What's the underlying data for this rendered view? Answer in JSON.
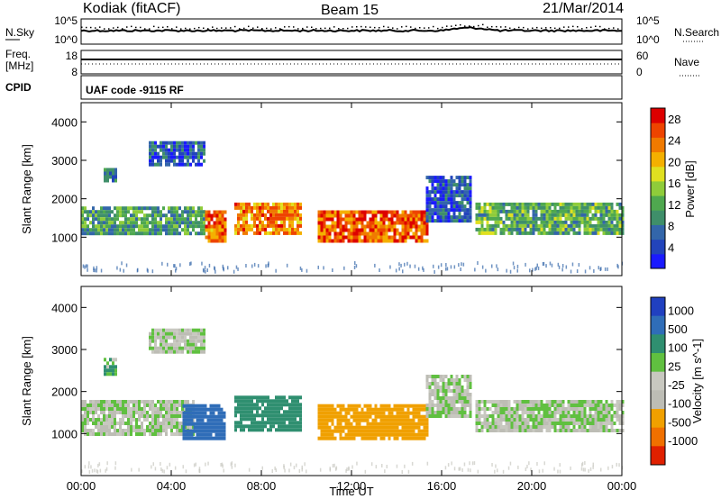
{
  "header": {
    "station": "Kodiak (fitACF)",
    "beam": "Beam 15",
    "date": "21/Mar/2014"
  },
  "noise_panel": {
    "left_label": "N.Sky",
    "right_label": "N.Search",
    "ticks": [
      "10^5",
      "10^0"
    ],
    "right_ticks": [
      "10^5",
      "10^0"
    ]
  },
  "freq_panel": {
    "left_label_1": "Freq.",
    "left_label_2": "[MHz]",
    "left_ticks": [
      "18",
      "8"
    ],
    "right_ticks": [
      "60",
      "0"
    ],
    "right_label": "Nave",
    "cpid_label": "CPID"
  },
  "cpid_panel": {
    "text": "UAF code -9115 RF"
  },
  "colors": {
    "power": [
      "#1a1aff",
      "#2244bb",
      "#3366aa",
      "#3f8f6a",
      "#4fa84f",
      "#8fcc3a",
      "#e0e020",
      "#f4b000",
      "#f07a00",
      "#ee4400",
      "#dd0000"
    ],
    "velocity": [
      "#2040c0",
      "#2f6db8",
      "#2f8f70",
      "#60c040",
      "#c8c8c0",
      "#bdbdb5",
      "#f0a000",
      "#f07000",
      "#e02000"
    ]
  },
  "chart_data": [
    {
      "type": "heatmap",
      "name": "power",
      "ylabel": "Slant Range [km]",
      "xlabel": "",
      "xlim": [
        "00:00",
        "00:00"
      ],
      "ylim": [
        0,
        4500
      ],
      "xticks": [
        "00:00",
        "04:00",
        "08:00",
        "12:00",
        "16:00",
        "20:00",
        "00:00"
      ],
      "yticks": [
        1000,
        2000,
        3000,
        4000
      ],
      "colorbar_label": "Power [dB]",
      "colorbar_ticks": [
        28,
        24,
        20,
        16,
        12,
        8,
        4
      ],
      "colorbar_range": [
        0,
        30
      ],
      "regions": [
        {
          "t0": 0.0,
          "t1": 5.5,
          "r0": 1050,
          "r1": 1800,
          "v": 11
        },
        {
          "t0": 5.5,
          "t1": 6.4,
          "r0": 900,
          "r1": 1700,
          "v": 24
        },
        {
          "t0": 6.8,
          "t1": 9.8,
          "r0": 1100,
          "r1": 1900,
          "v": 23
        },
        {
          "t0": 10.5,
          "t1": 15.3,
          "r0": 900,
          "r1": 1700,
          "v": 25
        },
        {
          "t0": 15.3,
          "t1": 17.3,
          "r0": 1400,
          "r1": 2600,
          "v": 5
        },
        {
          "t0": 17.5,
          "t1": 24.0,
          "r0": 1100,
          "r1": 1900,
          "v": 12
        },
        {
          "t0": 1.0,
          "t1": 1.6,
          "r0": 2450,
          "r1": 2800,
          "v": 8
        },
        {
          "t0": 3.0,
          "t1": 5.5,
          "r0": 2900,
          "r1": 3500,
          "v": 6
        }
      ]
    },
    {
      "type": "heatmap",
      "name": "velocity",
      "ylabel": "Slant Range [km]",
      "xlabel": "Time UT",
      "xlim": [
        "00:00",
        "00:00"
      ],
      "ylim": [
        0,
        4500
      ],
      "xticks": [
        "00:00",
        "04:00",
        "08:00",
        "12:00",
        "16:00",
        "20:00",
        "00:00"
      ],
      "yticks": [
        1000,
        2000,
        3000,
        4000
      ],
      "colorbar_label": "Velocity [m s^-1]",
      "colorbar_ticks": [
        "1000",
        "500",
        "100",
        "25",
        "-25",
        "-100",
        "-500",
        "-1000"
      ],
      "regions": [
        {
          "t0": 0.0,
          "t1": 5.0,
          "r0": 1000,
          "r1": 1800,
          "v": 0
        },
        {
          "t0": 4.5,
          "t1": 6.4,
          "r0": 900,
          "r1": 1700,
          "v": 800
        },
        {
          "t0": 6.8,
          "t1": 9.8,
          "r0": 1100,
          "r1": 1900,
          "v": 400
        },
        {
          "t0": 10.5,
          "t1": 15.3,
          "r0": 900,
          "r1": 1700,
          "v": -200
        },
        {
          "t0": 15.3,
          "t1": 17.3,
          "r0": 1400,
          "r1": 2400,
          "v": 0
        },
        {
          "t0": 17.5,
          "t1": 24.0,
          "r0": 1100,
          "r1": 1800,
          "v": 0
        },
        {
          "t0": 1.0,
          "t1": 1.6,
          "r0": 2450,
          "r1": 2800,
          "v": 100
        },
        {
          "t0": 3.0,
          "t1": 5.5,
          "r0": 2900,
          "r1": 3500,
          "v": 0
        }
      ]
    }
  ]
}
